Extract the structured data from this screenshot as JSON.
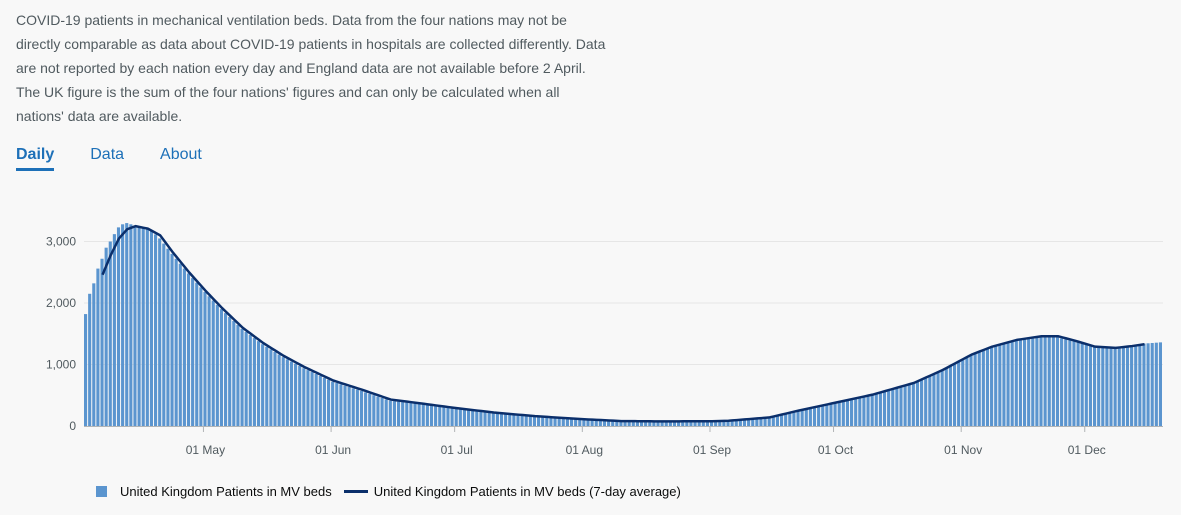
{
  "description": "COVID-19 patients in mechanical ventilation beds. Data from the four nations may not be directly comparable as data about COVID-19 patients in hospitals are collected differently. Data are not reported by each nation every day and England data are not available before 2 April. The UK figure is the sum of the four nations' figures and can only be calculated when all nations' data are available.",
  "tabs": [
    {
      "label": "Daily",
      "active": true
    },
    {
      "label": "Data",
      "active": false
    },
    {
      "label": "About",
      "active": false
    }
  ],
  "chart_data": {
    "type": "bar",
    "x_start": "2020-04-02",
    "x_end": "2020-12-19",
    "x_ticks": [
      "01 May",
      "01 Jun",
      "01 Jul",
      "01 Aug",
      "01 Sep",
      "01 Oct",
      "01 Nov",
      "01 Dec"
    ],
    "y_ticks": [
      "0",
      "1,000",
      "2,000",
      "3,000"
    ],
    "ylim": [
      0,
      3350
    ],
    "grid": true,
    "legend_position": "bottom-left",
    "series": [
      {
        "name": "United Kingdom Patients in MV beds",
        "kind": "bar",
        "color": "#5b95cf",
        "anchors": [
          [
            "2020-04-02",
            1820
          ],
          [
            "2020-04-03",
            2150
          ],
          [
            "2020-04-04",
            2320
          ],
          [
            "2020-04-05",
            2560
          ],
          [
            "2020-04-06",
            2720
          ],
          [
            "2020-04-07",
            2900
          ],
          [
            "2020-04-08",
            3000
          ],
          [
            "2020-04-09",
            3120
          ],
          [
            "2020-04-10",
            3230
          ],
          [
            "2020-04-11",
            3280
          ],
          [
            "2020-04-12",
            3300
          ],
          [
            "2020-04-14",
            3260
          ],
          [
            "2020-04-16",
            3220
          ],
          [
            "2020-04-18",
            3180
          ],
          [
            "2020-04-20",
            3050
          ],
          [
            "2020-04-23",
            2800
          ],
          [
            "2020-04-27",
            2480
          ],
          [
            "2020-05-01",
            2180
          ],
          [
            "2020-05-05",
            1900
          ],
          [
            "2020-05-10",
            1580
          ],
          [
            "2020-05-15",
            1330
          ],
          [
            "2020-05-20",
            1120
          ],
          [
            "2020-05-25",
            940
          ],
          [
            "2020-06-01",
            720
          ],
          [
            "2020-06-08",
            570
          ],
          [
            "2020-06-15",
            410
          ],
          [
            "2020-06-22",
            360
          ],
          [
            "2020-07-01",
            280
          ],
          [
            "2020-07-10",
            210
          ],
          [
            "2020-07-20",
            150
          ],
          [
            "2020-08-01",
            100
          ],
          [
            "2020-08-10",
            75
          ],
          [
            "2020-08-20",
            70
          ],
          [
            "2020-09-01",
            72
          ],
          [
            "2020-09-05",
            80
          ],
          [
            "2020-09-15",
            130
          ],
          [
            "2020-09-22",
            240
          ],
          [
            "2020-10-01",
            370
          ],
          [
            "2020-10-10",
            500
          ],
          [
            "2020-10-20",
            690
          ],
          [
            "2020-10-27",
            900
          ],
          [
            "2020-11-03",
            1150
          ],
          [
            "2020-11-08",
            1280
          ],
          [
            "2020-11-14",
            1390
          ],
          [
            "2020-11-20",
            1440
          ],
          [
            "2020-11-24",
            1440
          ],
          [
            "2020-11-28",
            1380
          ],
          [
            "2020-12-03",
            1280
          ],
          [
            "2020-12-08",
            1260
          ],
          [
            "2020-12-12",
            1300
          ],
          [
            "2020-12-15",
            1340
          ],
          [
            "2020-12-19",
            1360
          ]
        ]
      },
      {
        "name": "United Kingdom Patients in MV beds (7-day average)",
        "kind": "line",
        "color": "#0b2f6b",
        "anchors": [
          [
            "2020-04-06",
            2460
          ],
          [
            "2020-04-08",
            2780
          ],
          [
            "2020-04-10",
            3050
          ],
          [
            "2020-04-12",
            3200
          ],
          [
            "2020-04-14",
            3250
          ],
          [
            "2020-04-17",
            3210
          ],
          [
            "2020-04-20",
            3100
          ],
          [
            "2020-04-23",
            2830
          ],
          [
            "2020-04-27",
            2500
          ],
          [
            "2020-05-01",
            2200
          ],
          [
            "2020-05-05",
            1920
          ],
          [
            "2020-05-10",
            1600
          ],
          [
            "2020-05-15",
            1350
          ],
          [
            "2020-05-20",
            1140
          ],
          [
            "2020-05-25",
            960
          ],
          [
            "2020-06-01",
            740
          ],
          [
            "2020-06-08",
            590
          ],
          [
            "2020-06-15",
            430
          ],
          [
            "2020-06-22",
            370
          ],
          [
            "2020-07-01",
            290
          ],
          [
            "2020-07-10",
            220
          ],
          [
            "2020-07-20",
            160
          ],
          [
            "2020-08-01",
            110
          ],
          [
            "2020-08-10",
            80
          ],
          [
            "2020-08-20",
            75
          ],
          [
            "2020-09-01",
            78
          ],
          [
            "2020-09-05",
            85
          ],
          [
            "2020-09-15",
            140
          ],
          [
            "2020-09-22",
            250
          ],
          [
            "2020-10-01",
            380
          ],
          [
            "2020-10-10",
            510
          ],
          [
            "2020-10-20",
            700
          ],
          [
            "2020-10-27",
            910
          ],
          [
            "2020-11-03",
            1160
          ],
          [
            "2020-11-08",
            1290
          ],
          [
            "2020-11-14",
            1400
          ],
          [
            "2020-11-20",
            1460
          ],
          [
            "2020-11-24",
            1460
          ],
          [
            "2020-11-28",
            1390
          ],
          [
            "2020-12-03",
            1290
          ],
          [
            "2020-12-08",
            1270
          ],
          [
            "2020-12-12",
            1300
          ],
          [
            "2020-12-15",
            1330
          ]
        ]
      }
    ]
  }
}
